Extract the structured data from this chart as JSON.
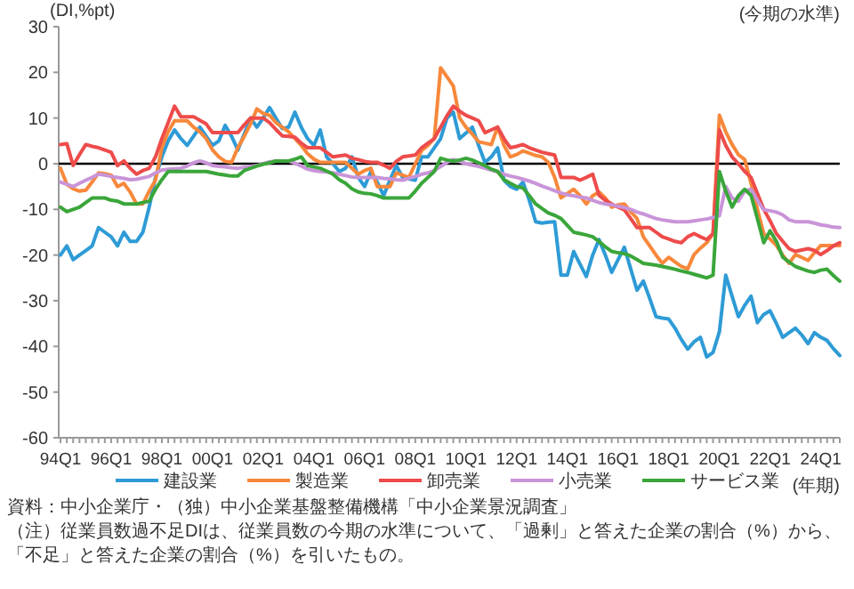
{
  "chart_data": {
    "type": "line",
    "ylabel": "(DI,%pt)",
    "subtitle": "(今期の水準)",
    "xlabel": "(年期)",
    "categories": [
      "94Q1",
      null,
      null,
      null,
      null,
      null,
      null,
      null,
      "96Q1",
      null,
      null,
      null,
      null,
      null,
      null,
      null,
      "98Q1",
      null,
      null,
      null,
      null,
      null,
      null,
      null,
      "00Q1",
      null,
      null,
      null,
      null,
      null,
      null,
      null,
      "02Q1",
      null,
      null,
      null,
      null,
      null,
      null,
      null,
      "04Q1",
      null,
      null,
      null,
      null,
      null,
      null,
      null,
      "06Q1",
      null,
      null,
      null,
      null,
      null,
      null,
      null,
      "08Q1",
      null,
      null,
      null,
      null,
      null,
      null,
      null,
      "10Q1",
      null,
      null,
      null,
      null,
      null,
      null,
      null,
      "12Q1",
      null,
      null,
      null,
      null,
      null,
      null,
      null,
      "14Q1",
      null,
      null,
      null,
      null,
      null,
      null,
      null,
      "16Q1",
      null,
      null,
      null,
      null,
      null,
      null,
      null,
      "18Q1",
      null,
      null,
      null,
      null,
      null,
      null,
      null,
      "20Q1",
      null,
      null,
      null,
      null,
      null,
      null,
      null,
      "22Q1",
      null,
      null,
      null,
      null,
      null,
      null,
      null,
      "24Q1",
      null,
      null,
      null
    ],
    "ylim": [
      -60,
      30
    ],
    "yticks": [
      -60,
      -50,
      -40,
      -30,
      -20,
      -10,
      0,
      10,
      20,
      30
    ],
    "grid": false,
    "legend": "bottom",
    "marker": "none",
    "line_style": "solid",
    "ref_lines": [
      {
        "axis": "y",
        "value": 0,
        "color": "#000000"
      }
    ],
    "series": [
      {
        "name": "建設業",
        "color": "#2e9bd6",
        "values": [
          -20,
          -18,
          -21,
          -20,
          -19,
          -18,
          -14,
          -15,
          -16,
          -18,
          -15,
          -17,
          -17,
          -15,
          -9.5,
          -3,
          1.5,
          5,
          7.4,
          5.5,
          4,
          6,
          8,
          6,
          4,
          5,
          8.4,
          6,
          3,
          6.5,
          10,
          8,
          10,
          12.3,
          10,
          7.7,
          8,
          11.3,
          8,
          5.5,
          4,
          7.4,
          1.5,
          0,
          -1.7,
          -1,
          1.5,
          -3,
          -5,
          -1.7,
          -4,
          -7,
          -3.6,
          -0.4,
          -3,
          -3.3,
          -3.6,
          1.5,
          1.5,
          3.5,
          5.5,
          10,
          11.3,
          5.5,
          6.7,
          8,
          4,
          0.3,
          1.5,
          3.5,
          -3.6,
          -5,
          -5.6,
          -4,
          -8,
          -12.7,
          -13,
          -12.8,
          -12.7,
          -24.4,
          -24.4,
          -19.2,
          -22,
          -24.7,
          -20,
          -16.6,
          -20,
          -23.8,
          -21,
          -18.3,
          -23,
          -27.7,
          -25.7,
          -29.5,
          -33.5,
          -33.8,
          -34,
          -36,
          -38.5,
          -40.6,
          -39,
          -38,
          -42.3,
          -41.3,
          -36.8,
          -24.4,
          -29,
          -33.5,
          -31,
          -29,
          -34.8,
          -33,
          -32.2,
          -35,
          -38,
          -37,
          -36,
          -37.5,
          -39.4,
          -37,
          -38,
          -38.7,
          -40.5,
          -42
        ]
      },
      {
        "name": "製造業",
        "color": "#f7883b",
        "values": [
          -1,
          -4.5,
          -5.5,
          -6,
          -5.8,
          -4,
          -2,
          -2.2,
          -2.5,
          -5,
          -4.3,
          -6.2,
          -8.8,
          -8.8,
          -6,
          -3.6,
          3.5,
          7,
          9.4,
          9.4,
          9.4,
          8,
          7,
          5.5,
          3,
          1.5,
          0.5,
          0.3,
          3.5,
          6,
          8.7,
          12,
          11,
          10.6,
          9,
          8,
          7,
          5.5,
          4,
          2.2,
          1,
          0.3,
          0.3,
          0.3,
          0.3,
          0.3,
          -1,
          -2.3,
          -1.5,
          -1,
          -5,
          -5,
          -5,
          -2,
          -2.5,
          -3,
          0,
          2.9,
          4,
          5.5,
          21,
          19,
          17,
          10,
          8,
          6.5,
          4.8,
          4.5,
          4.2,
          8,
          4,
          1.5,
          2,
          2.8,
          2.3,
          1.8,
          1.5,
          0.3,
          -3,
          -7.5,
          -6.5,
          -5.6,
          -7,
          -8.8,
          -7,
          -6.2,
          -7.5,
          -9.5,
          -9,
          -8.8,
          -10.5,
          -12,
          -16,
          -18,
          -20,
          -21.8,
          -20.5,
          -21.5,
          -22.5,
          -23,
          -19.9,
          -18.5,
          -17.3,
          -15.3,
          10.6,
          7,
          4.2,
          2,
          0.9,
          -4.3,
          -10,
          -15.3,
          -16.5,
          -17.9,
          -20,
          -21.8,
          -19.9,
          -20.5,
          -21.2,
          -19.5,
          -17.9,
          -17.9,
          -17.9,
          -17.9
        ]
      },
      {
        "name": "卸売業",
        "color": "#ee4b4b",
        "values": [
          4.2,
          4.4,
          -0.4,
          2,
          4.2,
          3.8,
          3.5,
          3,
          2.5,
          -0.4,
          0.6,
          -1,
          -2.3,
          -1.5,
          -1,
          1.5,
          5.5,
          9,
          12.6,
          10.3,
          10.3,
          10.3,
          9.5,
          8.7,
          6.8,
          6.8,
          6.8,
          6.8,
          6.8,
          8.5,
          10,
          10,
          10,
          9,
          7.5,
          6.1,
          6,
          5.8,
          4.5,
          3.5,
          3.5,
          3.5,
          2.5,
          1.5,
          1.7,
          1.9,
          1.2,
          0.9,
          0.5,
          0.3,
          0.3,
          -0.3,
          -1,
          0.5,
          1.5,
          1.7,
          1.9,
          3.5,
          4.5,
          5.5,
          8,
          10.5,
          12.6,
          11.5,
          10.6,
          10,
          9.4,
          6.8,
          7.4,
          8,
          5.5,
          3.5,
          3.8,
          4.2,
          3.5,
          3,
          2.5,
          2.2,
          1.9,
          -3,
          -3,
          -3,
          -3.6,
          -3,
          -2.3,
          -6.9,
          -8,
          -8.8,
          -9.5,
          -10.1,
          -12,
          -14,
          -14,
          -14,
          -15,
          -16,
          -16.5,
          -17,
          -17.3,
          -16,
          -15.3,
          -16,
          -16.6,
          -15.3,
          7.4,
          4,
          1.5,
          0,
          -1.7,
          -3,
          -6.5,
          -10,
          -12.5,
          -15.3,
          -17,
          -18.6,
          -19.2,
          -18.9,
          -18.6,
          -19,
          -19.9,
          -19,
          -18,
          -17.3
        ]
      },
      {
        "name": "小売業",
        "color": "#c994d8",
        "values": [
          -4,
          -4.5,
          -5,
          -4.3,
          -3.6,
          -3,
          -2.3,
          -2.5,
          -2.8,
          -3,
          -3.2,
          -3.5,
          -3.4,
          -3.1,
          -2.8,
          -2,
          -1.4,
          -1.2,
          -1.1,
          -1,
          -0.5,
          0.2,
          0.6,
          0.2,
          -0.4,
          -0.6,
          -0.7,
          -0.9,
          -1,
          -0.8,
          -0.6,
          -0.4,
          0,
          0.4,
          0.6,
          0.6,
          0.6,
          0.1,
          -0.5,
          -1.2,
          -1.5,
          -1.7,
          -1.8,
          -2,
          -2.3,
          -2.6,
          -2.9,
          -3,
          -3,
          -3,
          -3,
          -3.2,
          -3.3,
          -3.5,
          -3.6,
          -3.2,
          -2.8,
          -2.3,
          -2,
          -1.5,
          -0.6,
          0.3,
          0.9,
          0.5,
          0,
          -0.3,
          -0.6,
          -1,
          -1.4,
          -1.8,
          -2.3,
          -2.7,
          -3,
          -3.4,
          -3.8,
          -4.3,
          -4.9,
          -5.4,
          -5.9,
          -6.4,
          -6.8,
          -7,
          -7.3,
          -7.5,
          -8,
          -8.5,
          -8.8,
          -9,
          -9.3,
          -9.6,
          -10,
          -10.6,
          -11,
          -11.5,
          -12,
          -12.3,
          -12.5,
          -12.7,
          -12.7,
          -12.7,
          -12.5,
          -12.3,
          -12.1,
          -11.8,
          -11.4,
          -5,
          -7.5,
          -8.2,
          -6,
          -5.6,
          -8,
          -10.1,
          -10.3,
          -10.6,
          -11.2,
          -12.3,
          -12.7,
          -12.7,
          -12.7,
          -13,
          -13.4,
          -13.6,
          -13.9,
          -14
        ]
      },
      {
        "name": "サービス業",
        "color": "#3aa63a",
        "values": [
          -9.5,
          -10.5,
          -10,
          -9.5,
          -8.5,
          -7.5,
          -7.5,
          -7.5,
          -8,
          -8.2,
          -8.8,
          -8.8,
          -8.8,
          -8.5,
          -8.2,
          -5.6,
          -3.5,
          -1.7,
          -1.7,
          -1.7,
          -1.7,
          -1.7,
          -1.7,
          -1.7,
          -2,
          -2.3,
          -2.5,
          -2.7,
          -2.7,
          -1.5,
          -1,
          -0.5,
          -0.1,
          0.2,
          0.6,
          0.6,
          0.6,
          1,
          1.5,
          -0.4,
          -0.7,
          -1,
          -1.6,
          -2.3,
          -3.5,
          -4.3,
          -5.5,
          -6.2,
          -6.5,
          -6.6,
          -7,
          -7.5,
          -7.5,
          -7.5,
          -7.5,
          -7.5,
          -6,
          -4.3,
          -3,
          -1.7,
          1.2,
          0.8,
          0.6,
          0.8,
          1.2,
          0.8,
          0.2,
          -0.4,
          -1.2,
          -1.7,
          -3.5,
          -4.3,
          -5,
          -5.3,
          -7,
          -8.8,
          -9.8,
          -10.8,
          -11.3,
          -12,
          -13.5,
          -15,
          -15.3,
          -15.6,
          -16,
          -17,
          -18.2,
          -19.2,
          -19.5,
          -19.7,
          -20.2,
          -21,
          -21.8,
          -22,
          -22.2,
          -22.5,
          -22.8,
          -23.1,
          -23.5,
          -23.8,
          -24.2,
          -24.6,
          -25,
          -24.4,
          -1.7,
          -6,
          -9.5,
          -7,
          -5.6,
          -6.9,
          -12,
          -17.3,
          -14.7,
          -17,
          -20.5,
          -21.5,
          -22.5,
          -23,
          -23.5,
          -23.8,
          -23.3,
          -23.1,
          -24.5,
          -25.7
        ]
      }
    ],
    "annotations": [
      "資料：中小企業庁・（独）中小企業基盤整備機構「中小企業景況調査」",
      "（注）従業員数過不足DIは、従業員数の今期の水準について、「過剰」と答えた企業の割合（%）から、「不足」と答えた企業の割合（%）を引いたもの。"
    ]
  }
}
